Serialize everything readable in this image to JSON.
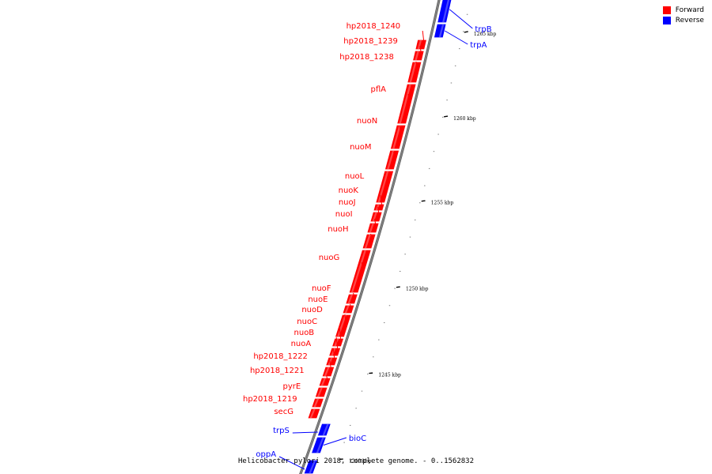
{
  "legend": [
    {
      "label": "Forward",
      "color": "#ff0000"
    },
    {
      "label": "Reverse",
      "color": "#0000ff"
    }
  ],
  "caption": "Helicobacter pylori 2018, complete genome. - 0..1562832",
  "colors": {
    "forward": "#ff0000",
    "reverse": "#0000ff",
    "backbone": "#808080"
  },
  "ticks": [
    "1240 kbp",
    "1245 kbp",
    "1250 kbp",
    "1255 kbp",
    "1260 kbp",
    "1265 kbp"
  ],
  "forward_genes": [
    "secG",
    "hp2018_1219",
    "pyrE",
    "hp2018_1221",
    "hp2018_1222",
    "nuoA",
    "nuoB",
    "nuoC",
    "nuoD",
    "nuoE",
    "nuoF",
    "nuoG",
    "nuoH",
    "nuoI",
    "nuoJ",
    "nuoK",
    "nuoL",
    "nuoM",
    "nuoN",
    "pflA",
    "hp2018_1238",
    "hp2018_1239",
    "hp2018_1240"
  ],
  "reverse_genes": [
    "oppA",
    "trpS",
    "bioC",
    "trpA",
    "trpB"
  ]
}
